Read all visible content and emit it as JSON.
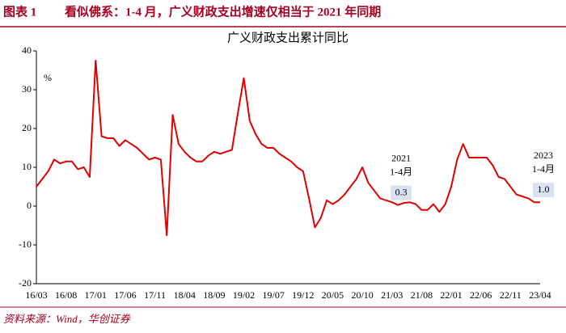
{
  "header": {
    "figure": "图表 1",
    "title": "看似佛系：1-4 月，广义财政支出增速仅相当于 2021 年同期"
  },
  "source": "资料来源：Wind，华创证券",
  "chart_data": {
    "type": "line",
    "title": "广义财政支出累计同比",
    "unit": "%",
    "categories": [
      "16/03",
      null,
      null,
      null,
      null,
      "16/08",
      null,
      null,
      null,
      null,
      "17/01",
      null,
      null,
      null,
      null,
      "17/06",
      null,
      null,
      null,
      null,
      "17/11",
      null,
      null,
      null,
      null,
      "18/04",
      null,
      null,
      null,
      null,
      "18/09",
      null,
      null,
      null,
      null,
      "19/02",
      null,
      null,
      null,
      null,
      "19/07",
      null,
      null,
      null,
      null,
      "19/12",
      null,
      null,
      null,
      null,
      "20/05",
      null,
      null,
      null,
      null,
      "20/10",
      null,
      null,
      null,
      null,
      "21/03",
      null,
      null,
      null,
      null,
      "21/08",
      null,
      null,
      null,
      null,
      "22/01",
      null,
      null,
      null,
      null,
      "22/06",
      null,
      null,
      null,
      null,
      "22/11",
      null,
      null,
      null,
      null,
      "23/04"
    ],
    "series": [
      {
        "name": "广义财政支出累计同比",
        "color": "#e00000",
        "values": [
          5,
          7,
          9,
          12,
          11,
          11.5,
          11.5,
          9.5,
          10,
          7.5,
          37.5,
          18,
          17.5,
          17.5,
          15.5,
          17,
          16,
          15,
          13.5,
          12,
          12.5,
          12,
          -7.5,
          23.5,
          16,
          14,
          12.5,
          11.5,
          11.5,
          13,
          14,
          13.5,
          14,
          14.5,
          24,
          33,
          22,
          18.5,
          16,
          15,
          15,
          13.5,
          12.5,
          11.5,
          10,
          9,
          2,
          -5.5,
          -3,
          1.5,
          0.5,
          1.5,
          3,
          5,
          7,
          10,
          6,
          4,
          2,
          1.5,
          1,
          0.3,
          0.8,
          1,
          0.5,
          -1,
          -1,
          0.5,
          -1.5,
          0.5,
          5,
          12,
          16,
          12.5,
          12.5,
          12.5,
          12.5,
          10.5,
          7.5,
          7,
          5,
          3,
          2.5,
          2,
          1,
          1.0
        ],
        "value_labels": [
          null,
          null,
          null,
          null,
          null,
          null,
          null,
          null,
          null,
          null,
          null,
          null,
          null,
          null,
          null,
          null,
          null,
          null,
          null,
          null,
          null,
          null,
          null,
          null,
          null,
          null,
          null,
          null,
          null,
          null,
          null,
          null,
          null,
          null,
          null,
          null,
          null,
          null,
          null,
          null,
          null,
          null,
          null,
          null,
          null,
          null,
          null,
          null,
          null,
          null,
          null,
          null,
          null,
          null,
          null,
          null,
          null,
          null,
          null,
          null,
          null,
          "0.3",
          null,
          null,
          null,
          null,
          null,
          null,
          null,
          null,
          null,
          null,
          null,
          null,
          null,
          null,
          null,
          null,
          null,
          null,
          null,
          null,
          null,
          null,
          null,
          "1.0"
        ]
      }
    ],
    "annotations": [
      [
        "2021",
        "1-4月"
      ],
      [
        "2023",
        "1-4月"
      ]
    ],
    "ylim": [
      -20,
      40
    ],
    "yticks": [
      -20,
      -10,
      0,
      10,
      20,
      30,
      40
    ],
    "grid": false
  }
}
